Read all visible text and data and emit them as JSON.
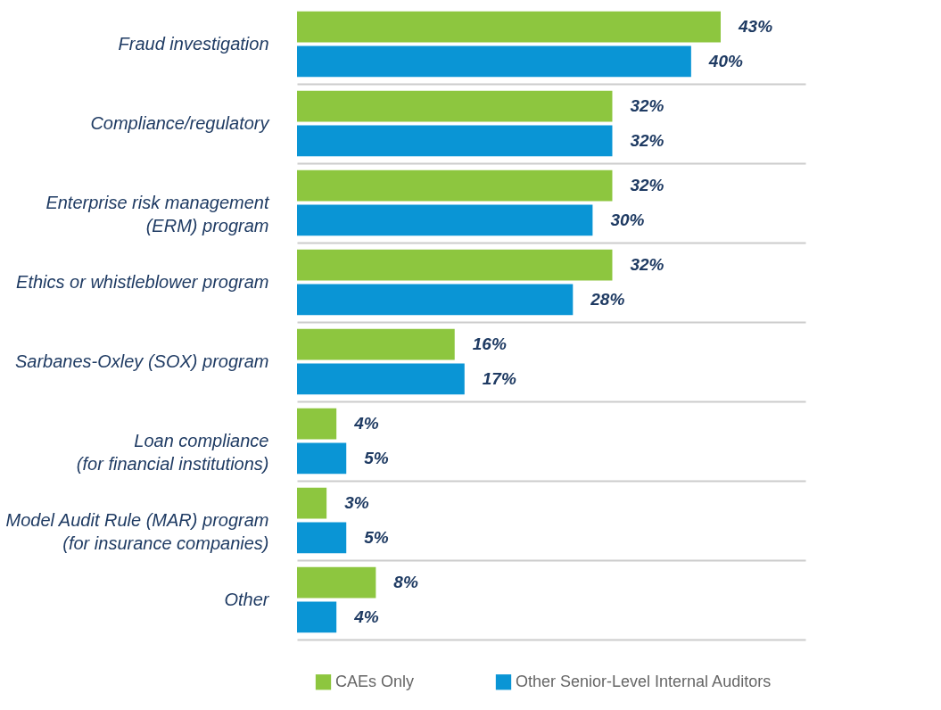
{
  "chart_data": {
    "type": "bar",
    "orientation": "horizontal",
    "categories": [
      "Fraud investigation",
      "Compliance/regulatory",
      "Enterprise risk management\n(ERM) program",
      "Ethics or whistleblower program",
      "Sarbanes-Oxley (SOX) program",
      "Loan compliance\n(for financial institutions)",
      "Model Audit Rule (MAR) program\n(for insurance companies)",
      "Other"
    ],
    "series": [
      {
        "name": "CAEs Only",
        "color": "#8dc63f",
        "values": [
          43,
          32,
          32,
          32,
          16,
          4,
          3,
          8
        ],
        "value_labels": [
          "43%",
          "32%",
          "32%",
          "32%",
          "16%",
          "4%",
          "3%",
          "8%"
        ]
      },
      {
        "name": "Other Senior-Level Internal Auditors",
        "color": "#0a95d5",
        "values": [
          40,
          32,
          30,
          28,
          17,
          5,
          5,
          4
        ],
        "value_labels": [
          "40%",
          "32%",
          "30%",
          "28%",
          "17%",
          "5%",
          "5%",
          "4%"
        ]
      }
    ],
    "grid": "y",
    "legend": "bottom"
  }
}
